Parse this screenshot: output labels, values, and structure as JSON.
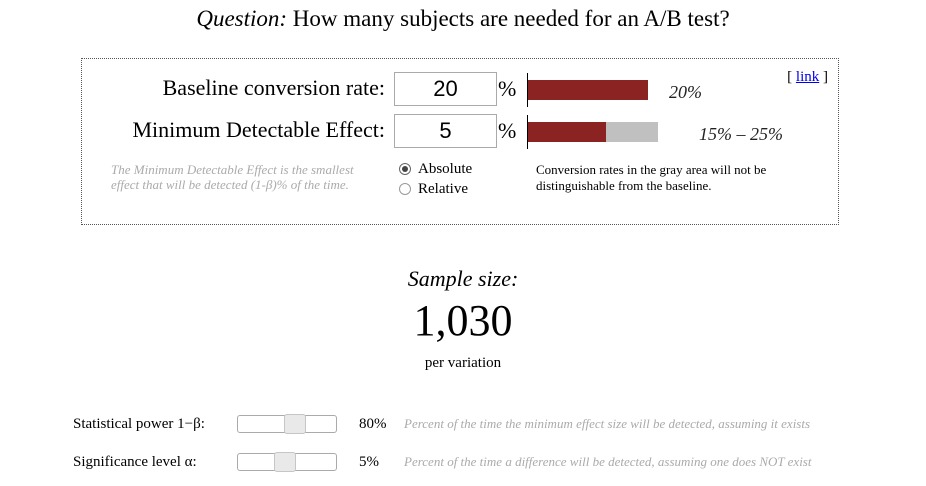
{
  "header": {
    "question_label": "Question:",
    "question_text": " How many subjects are needed for an A/B test?"
  },
  "link": {
    "open": "[ ",
    "text": "link",
    "close": " ]"
  },
  "baseline": {
    "label": "Baseline conversion rate:",
    "value": "20",
    "unit": "%",
    "bar_label": "20%",
    "bar_fraction": 1.0
  },
  "mde": {
    "label": "Minimum Detectable Effect:",
    "value": "5",
    "unit": "%",
    "bar_label": "15% – 25%",
    "bar_red_fraction": 0.6,
    "bar_gray_fraction": 0.4,
    "note": "The Minimum Detectable Effect is the smallest effect that will be detected (1-β)% of the time.",
    "options": [
      {
        "label": "Absolute",
        "checked": true
      },
      {
        "label": "Relative",
        "checked": false
      }
    ]
  },
  "gray_area_note": "Conversion rates in the gray area will not be distinguishable from the baseline.",
  "result": {
    "label": "Sample size:",
    "value": "1,030",
    "unit": "per variation"
  },
  "power": {
    "label": "Statistical power 1−β:",
    "value": "80%",
    "slider_fraction": 0.6,
    "description": "Percent of the time the minimum effect size will be detected, assuming it exists"
  },
  "significance": {
    "label": "Significance level α:",
    "value": "5%",
    "slider_fraction": 0.47,
    "description": "Percent of the time a difference will be detected, assuming one does NOT exist"
  },
  "colors": {
    "bar_red": "#8b2323",
    "bar_gray": "#c0c0c0",
    "muted_text": "#aaaaaa",
    "link": "#0000ee"
  }
}
